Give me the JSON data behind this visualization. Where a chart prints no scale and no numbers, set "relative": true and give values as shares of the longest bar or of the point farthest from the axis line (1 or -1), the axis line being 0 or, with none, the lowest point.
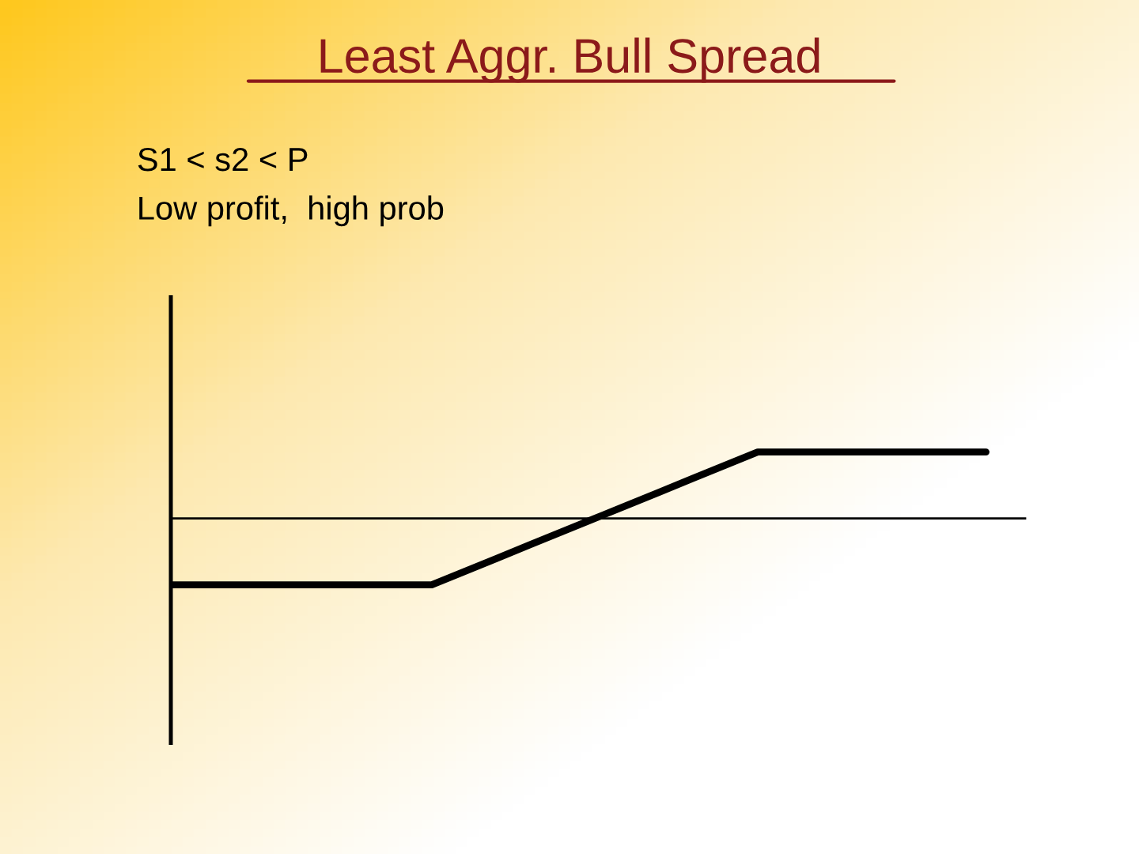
{
  "chart_data": {
    "type": "line",
    "title": "Least Aggr. Bull Spread",
    "annotations": [
      "S1 < s2 < P",
      "Low profit,  high prob"
    ],
    "relative": true,
    "categories": [
      null,
      null,
      null,
      null,
      null,
      null,
      null,
      null,
      null,
      null,
      null,
      null,
      null,
      null,
      null,
      null,
      null,
      null,
      null,
      null,
      null,
      null,
      null,
      null,
      null,
      null
    ],
    "series": [
      {
        "color": "#000000",
        "values": [
          -1,
          -1,
          -1,
          -1,
          -1,
          -1,
          -1,
          -1,
          -1,
          -0.8,
          -0.6,
          -0.4,
          -0.2,
          0,
          0.2,
          0.4,
          0.6,
          0.8,
          1,
          1,
          1,
          1,
          1,
          1,
          1,
          1
        ]
      }
    ],
    "marker": "none",
    "line_style": "solid"
  }
}
